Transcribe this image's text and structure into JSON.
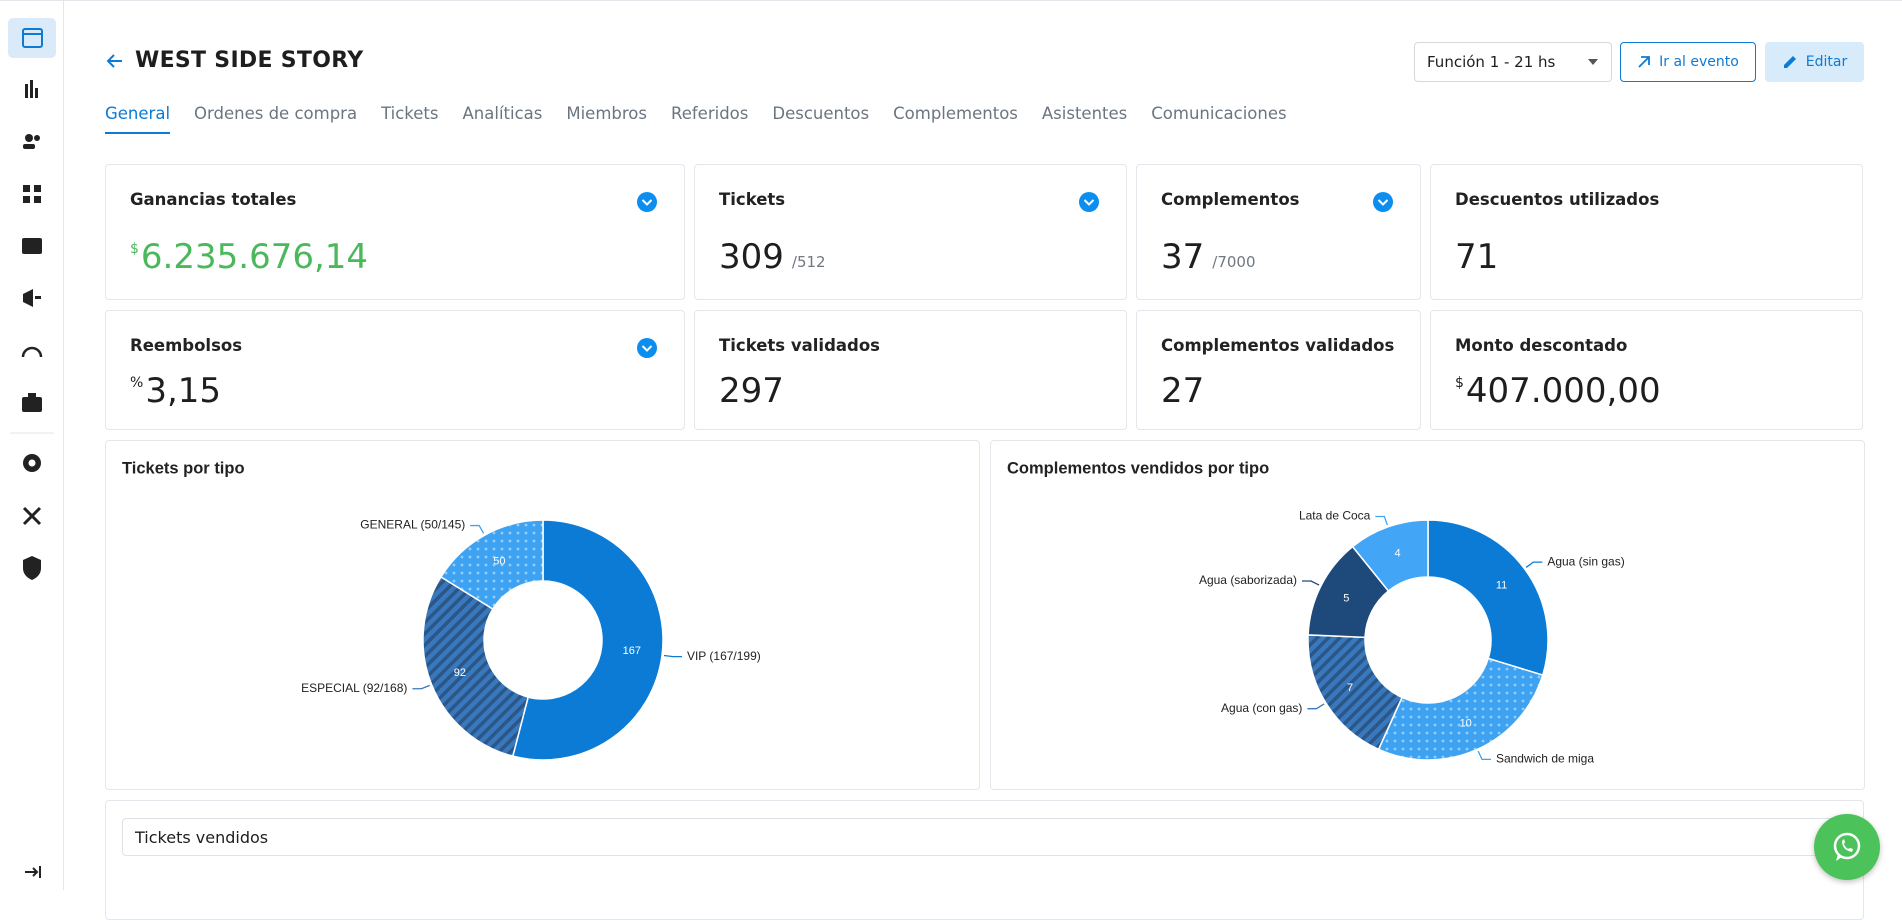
{
  "header": {
    "title": "WEST SIDE STORY",
    "function_select": "Función 1 - 21 hs",
    "go_button": "Ir al evento",
    "edit_button": "Editar"
  },
  "tabs": [
    "General",
    "Ordenes de compra",
    "Tickets",
    "Analíticas",
    "Miembros",
    "Referidos",
    "Descuentos",
    "Complementos",
    "Asistentes",
    "Comunicaciones"
  ],
  "stats": [
    {
      "label": "Ganancias totales",
      "prefix": "$",
      "value": "6.235.676,14",
      "expandable": true
    },
    {
      "label": "Tickets",
      "value": "309",
      "total": "/512",
      "expandable": true
    },
    {
      "label": "Complementos",
      "value": "37",
      "total": "/7000",
      "expandable": true
    },
    {
      "label": "Descuentos utilizados",
      "value": "71"
    },
    {
      "label": "Reembolsos",
      "prefix": "%",
      "value": "3,15",
      "expandable": true
    },
    {
      "label": "Tickets validados",
      "value": "297"
    },
    {
      "label": "Complementos validados",
      "value": "27"
    },
    {
      "label": "Monto descontado",
      "prefix": "$",
      "value": "407.000,00"
    }
  ],
  "chart_data": [
    {
      "type": "donut",
      "title": "Tickets por tipo",
      "categories": [
        "VIP (167/199)",
        "ESPECIAL (92/168)",
        "GENERAL (50/145)"
      ],
      "values": [
        167,
        92,
        50
      ],
      "colors": [
        "#0b7bd6",
        "#3a78bd",
        "#3ea2f2"
      ],
      "patterns": [
        "solid",
        "hatch",
        "dots"
      ]
    },
    {
      "type": "donut",
      "title": "Complementos vendidos por tipo",
      "categories": [
        "Agua (sin gas)",
        "Sandwich de miga",
        "Agua (con gas)",
        "Agua (saborizada)",
        "Lata de Coca"
      ],
      "values": [
        11,
        10,
        7,
        5,
        4
      ],
      "colors": [
        "#0b7bd6",
        "#3ea2f2",
        "#3a78bd",
        "#1d4a7a",
        "#42a5f5"
      ],
      "patterns": [
        "solid",
        "dots",
        "hatch",
        "solid",
        "solid"
      ]
    }
  ],
  "sales_chart": {
    "title": "Tickets vendidos"
  }
}
